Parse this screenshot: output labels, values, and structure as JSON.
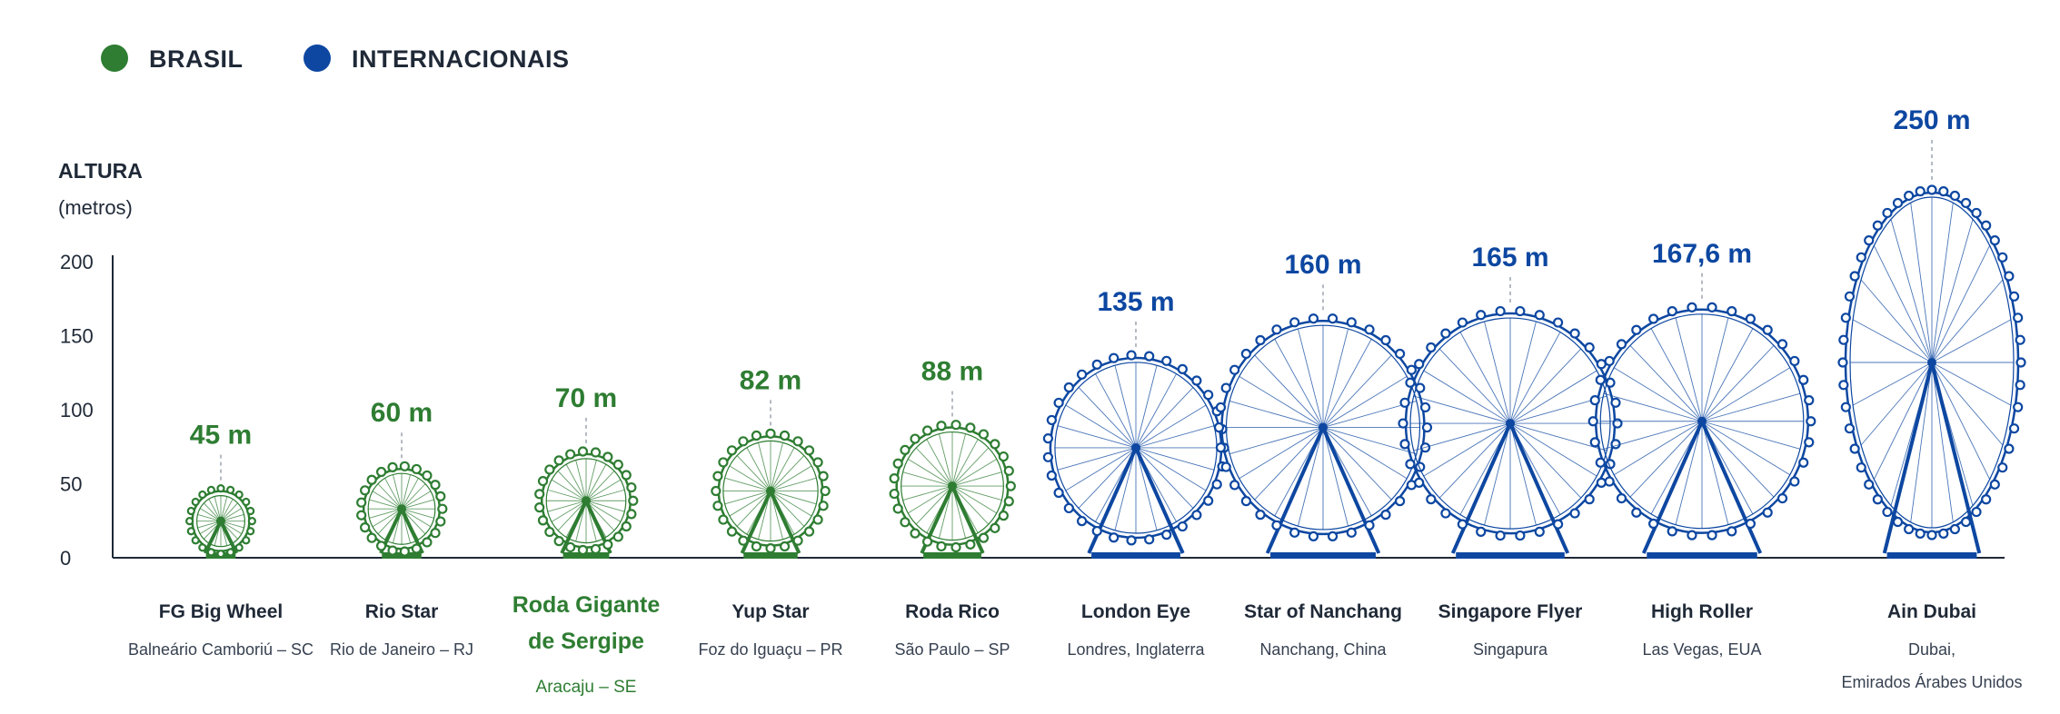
{
  "legend": [
    {
      "label": "BRASIL",
      "color": "#2e7d32"
    },
    {
      "label": "INTERNACIONAIS",
      "color": "#0d47a1"
    }
  ],
  "chart_data": {
    "type": "bar",
    "ylabel": "ALTURA",
    "yunit": "(metros)",
    "ylim": [
      0,
      200
    ],
    "yticks": [
      0,
      50,
      100,
      150,
      200
    ],
    "grid": false,
    "legend_position": "top-left",
    "colors": {
      "brasil": "#2e7d32",
      "internacionais": "#0d47a1"
    },
    "items": [
      {
        "name": [
          "FG Big Wheel"
        ],
        "location": [
          "Balneário Camboriú – SC"
        ],
        "value": 45,
        "label": "45 m",
        "group": "brasil",
        "highlight": false
      },
      {
        "name": [
          "Rio Star"
        ],
        "location": [
          "Rio de Janeiro – RJ"
        ],
        "value": 60,
        "label": "60 m",
        "group": "brasil",
        "highlight": false
      },
      {
        "name": [
          "Roda Gigante",
          "de Sergipe"
        ],
        "location": [
          "Aracaju – SE"
        ],
        "value": 70,
        "label": "70 m",
        "group": "brasil",
        "highlight": true
      },
      {
        "name": [
          "Yup Star"
        ],
        "location": [
          "Foz do Iguaçu – PR"
        ],
        "value": 82,
        "label": "82 m",
        "group": "brasil",
        "highlight": false
      },
      {
        "name": [
          "Roda Rico"
        ],
        "location": [
          "São Paulo – SP"
        ],
        "value": 88,
        "label": "88 m",
        "group": "brasil",
        "highlight": false
      },
      {
        "name": [
          "London Eye"
        ],
        "location": [
          "Londres, Inglaterra"
        ],
        "value": 135,
        "label": "135 m",
        "group": "internacionais",
        "highlight": false
      },
      {
        "name": [
          "Star of Nanchang"
        ],
        "location": [
          "Nanchang, China"
        ],
        "value": 160,
        "label": "160 m",
        "group": "internacionais",
        "highlight": false
      },
      {
        "name": [
          "Singapore Flyer"
        ],
        "location": [
          "Singapura"
        ],
        "value": 165,
        "label": "165 m",
        "group": "internacionais",
        "highlight": false
      },
      {
        "name": [
          "High Roller"
        ],
        "location": [
          "Las Vegas, EUA"
        ],
        "value": 167.6,
        "label": "167,6 m",
        "group": "internacionais",
        "highlight": false
      },
      {
        "name": [
          "Ain Dubai"
        ],
        "location": [
          "Dubai,",
          "Emirados Árabes Unidos"
        ],
        "value": 250,
        "label": "250 m",
        "group": "internacionais",
        "highlight": false
      }
    ]
  }
}
